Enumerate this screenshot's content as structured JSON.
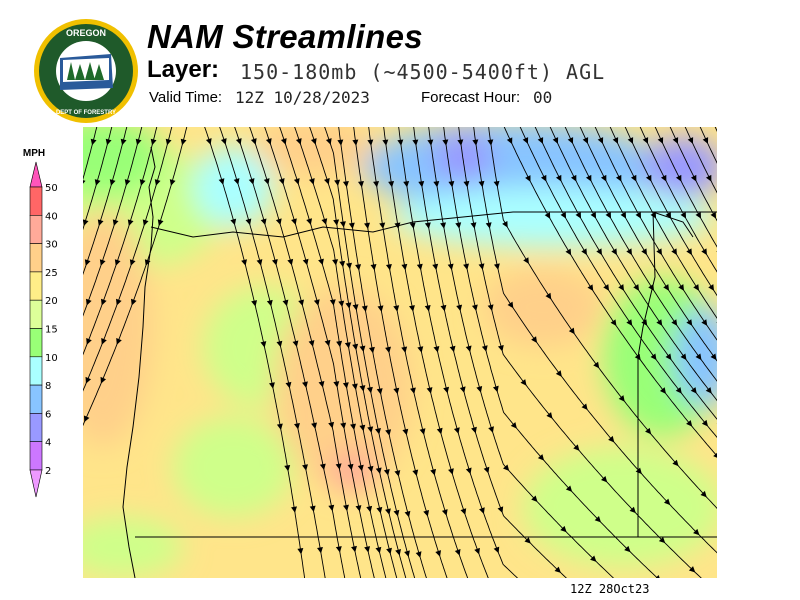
{
  "header": {
    "title": "NAM Streamlines",
    "layer_label": "Layer:",
    "layer_value": "150-180mb (~4500-5400ft) AGL",
    "valid_time_label": "Valid Time:",
    "valid_time_value": "12Z 10/28/2023",
    "forecast_hour_label": "Forecast Hour:",
    "forecast_hour_value": "00"
  },
  "logo": {
    "text_top": "OREGON",
    "text_bottom": "DEPARTMENT OF FORESTRY",
    "colors": {
      "ring": "#f0c000",
      "field": "#1f5a2a"
    }
  },
  "legend": {
    "unit": "MPH",
    "ticks": [
      "50",
      "40",
      "30",
      "25",
      "20",
      "15",
      "10",
      "8",
      "6",
      "4",
      "2"
    ],
    "colors_top_to_bottom": [
      "#ff55bb",
      "#ff6666",
      "#ffaa99",
      "#ffd08a",
      "#ffee88",
      "#ddff99",
      "#99ff77",
      "#aaffff",
      "#88c4ff",
      "#9999ff",
      "#cc77ff",
      "#ee99ff"
    ]
  },
  "map": {
    "field": "wind speed streamlines",
    "footer_time": "12Z 28Oct23"
  }
}
